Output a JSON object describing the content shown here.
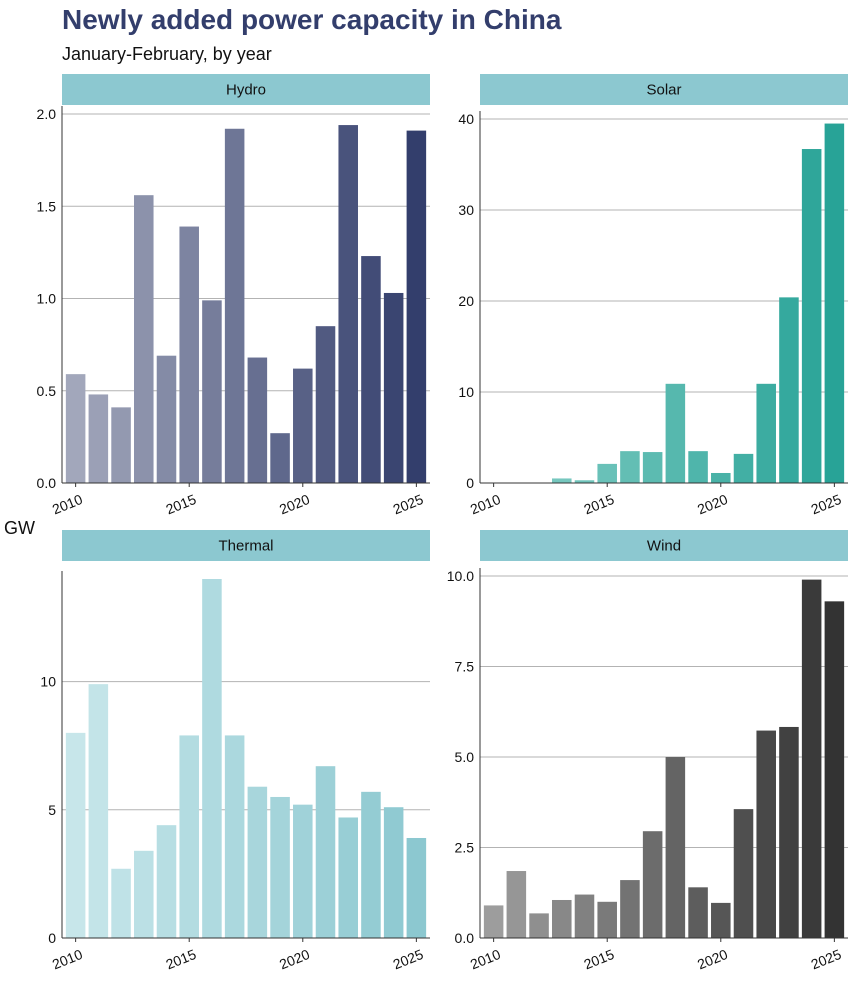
{
  "title": "Newly added power capacity in China",
  "subtitle": "January-February, by year",
  "y_axis_label": "GW",
  "colors": {
    "title": "#333e6c",
    "strip": "#8cc8d0",
    "grid": "#b3b3b3"
  },
  "chart_data": [
    {
      "type": "bar",
      "panel": "Hydro",
      "x": [
        2010,
        2011,
        2012,
        2013,
        2014,
        2015,
        2016,
        2017,
        2018,
        2019,
        2020,
        2021,
        2022,
        2023,
        2024,
        2025
      ],
      "values": [
        0.59,
        0.48,
        0.41,
        1.56,
        0.69,
        1.39,
        0.99,
        1.92,
        0.68,
        0.27,
        0.62,
        0.85,
        1.94,
        1.23,
        1.03,
        1.91
      ],
      "ylim": [
        0,
        2.0
      ],
      "yticks": [
        0.0,
        0.5,
        1.0,
        1.5,
        2.0
      ],
      "ytick_labels": [
        "0.0",
        "0.5",
        "1.0",
        "1.5",
        "2.0"
      ],
      "xticks": [
        2010,
        2015,
        2020,
        2025
      ],
      "color_start": "#a2a7bb",
      "color_end": "#333e6c"
    },
    {
      "type": "bar",
      "panel": "Solar",
      "x": [
        2010,
        2011,
        2012,
        2013,
        2014,
        2015,
        2016,
        2017,
        2018,
        2019,
        2020,
        2021,
        2022,
        2023,
        2024,
        2025
      ],
      "values": [
        0,
        0,
        0,
        0.5,
        0.3,
        2.1,
        3.5,
        3.4,
        10.9,
        3.5,
        1.1,
        3.2,
        10.9,
        20.4,
        36.7,
        39.5
      ],
      "ylim": [
        0,
        40
      ],
      "yticks": [
        0,
        10,
        20,
        30,
        40
      ],
      "ytick_labels": [
        "0",
        "10",
        "20",
        "30",
        "40"
      ],
      "xticks": [
        2010,
        2015,
        2020,
        2025
      ],
      "color_start": "#8ad0c8",
      "color_end": "#28a397"
    },
    {
      "type": "bar",
      "panel": "Thermal",
      "x": [
        2010,
        2011,
        2012,
        2013,
        2014,
        2015,
        2016,
        2017,
        2018,
        2019,
        2020,
        2021,
        2022,
        2023,
        2024,
        2025
      ],
      "values": [
        8.0,
        9.9,
        2.7,
        3.4,
        4.4,
        7.9,
        14.0,
        7.9,
        5.9,
        5.5,
        5.2,
        6.7,
        4.7,
        5.7,
        5.1,
        3.9
      ],
      "ylim": [
        0,
        14
      ],
      "yticks": [
        0,
        5,
        10
      ],
      "ytick_labels": [
        "0",
        "5",
        "10"
      ],
      "xticks": [
        2010,
        2015,
        2020,
        2025
      ],
      "color_start": "#c7e6ea",
      "color_end": "#8cc8d0"
    },
    {
      "type": "bar",
      "panel": "Wind",
      "x": [
        2010,
        2011,
        2012,
        2013,
        2014,
        2015,
        2016,
        2017,
        2018,
        2019,
        2020,
        2021,
        2022,
        2023,
        2024,
        2025
      ],
      "values": [
        0.9,
        1.85,
        0.68,
        1.05,
        1.2,
        1.0,
        1.6,
        2.95,
        5.0,
        1.4,
        0.97,
        3.56,
        5.73,
        5.83,
        9.9,
        9.3
      ],
      "ylim": [
        0,
        10
      ],
      "yticks": [
        0.0,
        2.5,
        5.0,
        7.5,
        10.0
      ],
      "ytick_labels": [
        "0.0",
        "2.5",
        "5.0",
        "7.5",
        "10.0"
      ],
      "xticks": [
        2010,
        2015,
        2020,
        2025
      ],
      "color_start": "#9d9d9d",
      "color_end": "#333333"
    }
  ]
}
